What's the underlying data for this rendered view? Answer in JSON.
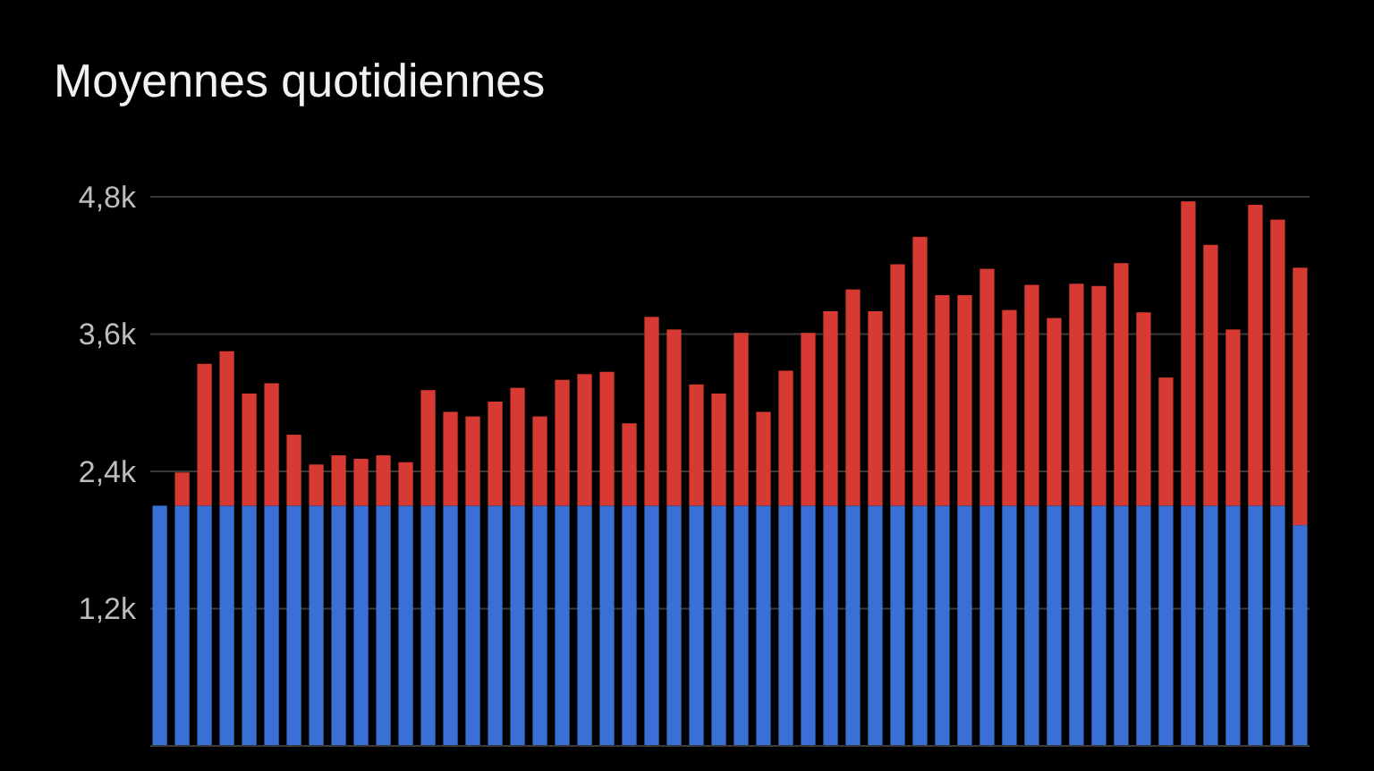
{
  "chart_data": {
    "type": "bar",
    "title": "Moyennes quotidiennes",
    "stacked": true,
    "grid": "y",
    "categories": [
      null,
      null,
      null,
      null,
      null,
      null,
      null,
      null,
      null,
      null,
      null,
      null,
      null,
      null,
      null,
      null,
      null,
      null,
      null,
      null,
      null,
      null,
      null,
      null,
      null,
      null,
      null,
      null,
      null,
      null,
      null,
      null,
      null,
      null,
      null,
      null,
      null,
      null,
      null,
      null,
      null,
      null,
      null,
      null,
      null,
      null,
      null,
      null,
      null,
      null,
      null,
      null
    ],
    "ylim": [
      0,
      4800
    ],
    "yticks": [
      {
        "value": 1200,
        "label": "1,2k"
      },
      {
        "value": 2400,
        "label": "2,4k"
      },
      {
        "value": 3600,
        "label": "3,6k"
      },
      {
        "value": 4800,
        "label": "4,8k"
      }
    ],
    "series": [
      {
        "color": "#3a6fd6",
        "values": [
          2100,
          2100,
          2100,
          2100,
          2100,
          2100,
          2100,
          2100,
          2100,
          2100,
          2100,
          2100,
          2100,
          2100,
          2100,
          2100,
          2100,
          2100,
          2100,
          2100,
          2100,
          2100,
          2100,
          2100,
          2100,
          2100,
          2100,
          2100,
          2100,
          2100,
          2100,
          2100,
          2100,
          2100,
          2100,
          2100,
          2100,
          2100,
          2100,
          2100,
          2100,
          2100,
          2100,
          2100,
          2100,
          2100,
          2100,
          2100,
          2100,
          2100,
          2100,
          1930
        ]
      },
      {
        "color": "#d63a32",
        "values": [
          0,
          290,
          1240,
          1350,
          980,
          1070,
          620,
          360,
          440,
          410,
          440,
          380,
          1010,
          820,
          780,
          910,
          1030,
          780,
          1100,
          1150,
          1170,
          720,
          1650,
          1540,
          1060,
          980,
          1510,
          820,
          1180,
          1510,
          1700,
          1890,
          1700,
          2110,
          2350,
          1840,
          1840,
          2070,
          1710,
          1930,
          1640,
          1940,
          1920,
          2120,
          1690,
          1120,
          2660,
          2280,
          1540,
          2630,
          2500,
          2250
        ]
      }
    ]
  }
}
